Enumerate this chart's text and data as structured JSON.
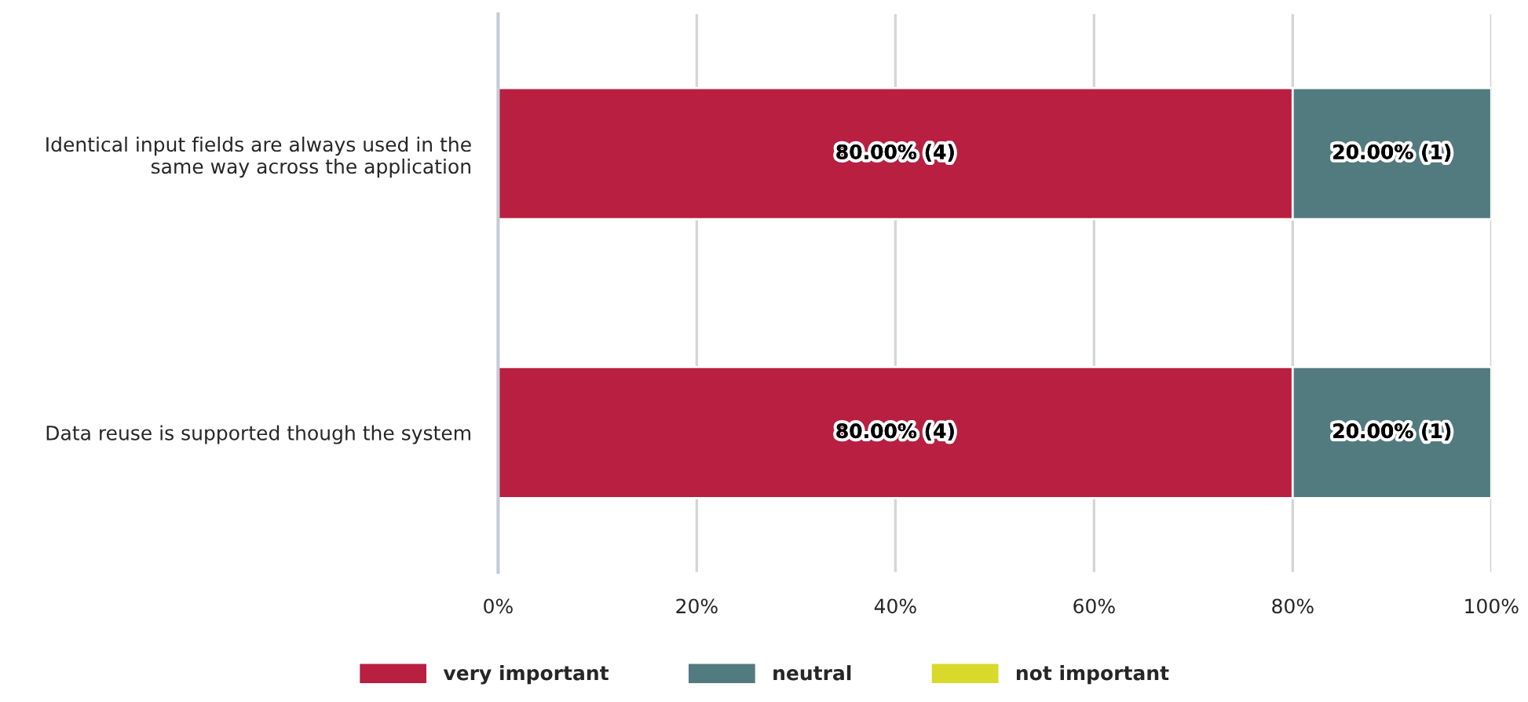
{
  "chart_data": {
    "type": "bar",
    "orientation": "horizontal",
    "stacked": true,
    "categories": [
      "Identical input fields are always used in the\nsame way across the application",
      "Data reuse is supported though the system"
    ],
    "series": [
      {
        "name": "very important",
        "color": "#b81f41",
        "values": [
          80,
          80
        ],
        "value_labels": [
          "80.00% (4)",
          "80.00% (4)"
        ]
      },
      {
        "name": "neutral",
        "color": "#527b80",
        "values": [
          20,
          20
        ],
        "value_labels": [
          "20.00% (1)",
          "20.00% (1)"
        ]
      },
      {
        "name": "not important",
        "color": "#d9d92b",
        "values": [
          0,
          0
        ],
        "value_labels": [
          null,
          null
        ]
      }
    ],
    "xlim": [
      0,
      100
    ],
    "xticks": [
      {
        "value": 0,
        "label": "0%"
      },
      {
        "value": 20,
        "label": "20%"
      },
      {
        "value": 40,
        "label": "40%"
      },
      {
        "value": 60,
        "label": "60%"
      },
      {
        "value": 80,
        "label": "80%"
      },
      {
        "value": 100,
        "label": "100%"
      }
    ],
    "grid": "x",
    "legend": "bottom"
  }
}
